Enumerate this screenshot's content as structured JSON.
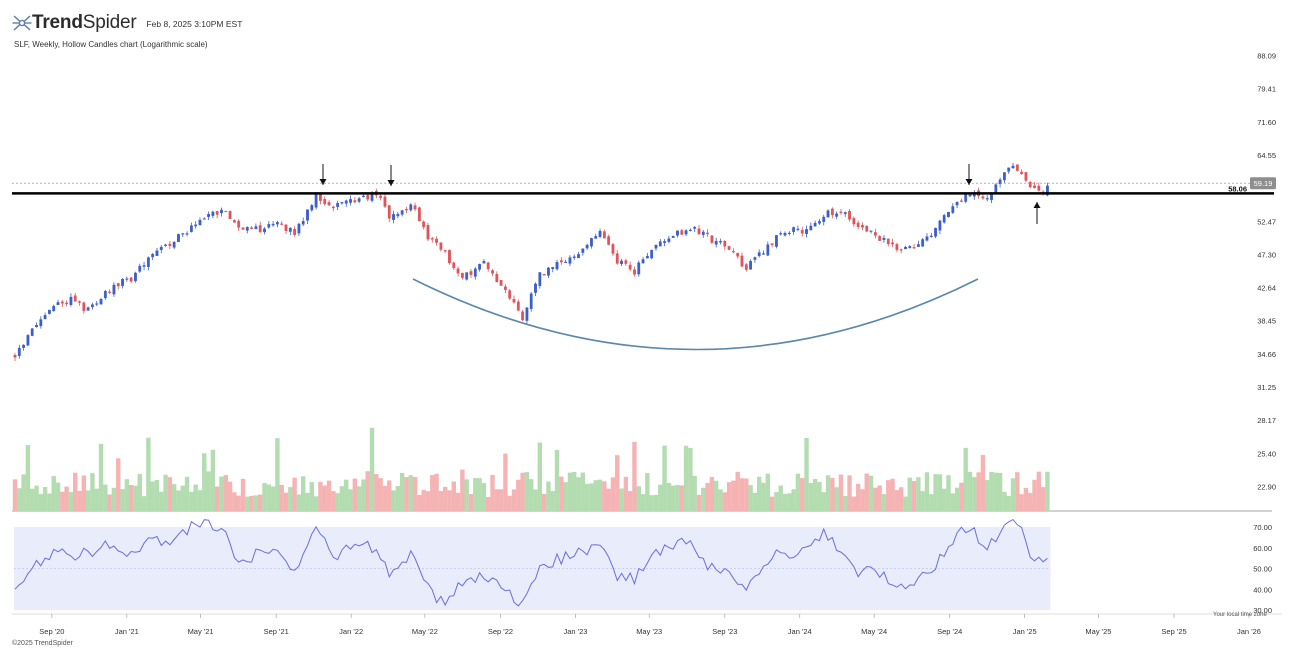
{
  "header": {
    "brand": "TrendSpider",
    "timestamp": "Feb 8, 2025 3:10PM EST"
  },
  "subtitle": "SLF, Weekly, Hollow Candles chart (Logarithmic scale)",
  "footer": {
    "copyright": "©2025 TrendSpider",
    "timezone_note": "Your local time zone"
  },
  "colors": {
    "up": "#3b5fc9",
    "down": "#e0535a",
    "vol_up": "#b3dcb0",
    "vol_down": "#f5b3b3",
    "rsi_band": "#e8ecfb",
    "rsi_line": "#6b6de0",
    "arc": "#5b87ad",
    "level": "#000000",
    "last_price_bg": "#8e8e8e"
  },
  "chart_data": {
    "type": "candlestick",
    "symbol": "SLF",
    "interval": "Weekly",
    "scale": "log",
    "price_axis_ticks": [
      "88.09",
      "79.41",
      "71.60",
      "64.55",
      "58.06",
      "52.47",
      "47.30",
      "42.64",
      "38.45",
      "34.66",
      "31.25",
      "28.17",
      "25.40",
      "22.90"
    ],
    "time_axis_ticks": [
      "Sep '20",
      "Jan '21",
      "May '21",
      "Sep '21",
      "Jan '22",
      "May '22",
      "Sep '22",
      "Jan '23",
      "May '23",
      "Sep '23",
      "Jan '24",
      "May '24",
      "Sep '24",
      "Jan '25",
      "May '25",
      "Sep '25",
      "Jan '26"
    ],
    "rsi_axis_ticks": [
      "70.00",
      "60.00",
      "50.00",
      "40.00",
      "30.00"
    ],
    "resistance_level": {
      "label": "58.06",
      "value": 58.06
    },
    "last_price": {
      "label": "59.19",
      "value": 59.19
    },
    "annotations": [
      "down-arrow Oct '21",
      "down-arrow Feb '22",
      "down-arrow Oct '24",
      "up-arrow Feb '25",
      "rounded-bottom arc"
    ],
    "price_path": [
      [
        "2020-07-03",
        34.5
      ],
      [
        "2020-08-07",
        38.0
      ],
      [
        "2020-09-04",
        40.5
      ],
      [
        "2020-10-02",
        41.2
      ],
      [
        "2020-10-30",
        39.8
      ],
      [
        "2020-12-04",
        42.5
      ],
      [
        "2021-01-08",
        44.0
      ],
      [
        "2021-02-05",
        46.5
      ],
      [
        "2021-03-05",
        48.5
      ],
      [
        "2021-04-02",
        50.5
      ],
      [
        "2021-05-07",
        53.0
      ],
      [
        "2021-06-04",
        54.5
      ],
      [
        "2021-07-02",
        52.0
      ],
      [
        "2021-08-06",
        51.0
      ],
      [
        "2021-09-03",
        52.5
      ],
      [
        "2021-10-01",
        50.5
      ],
      [
        "2021-11-05",
        57.0
      ],
      [
        "2021-12-03",
        55.0
      ],
      [
        "2022-01-07",
        56.0
      ],
      [
        "2022-02-11",
        57.5
      ],
      [
        "2022-03-04",
        53.0
      ],
      [
        "2022-04-08",
        55.5
      ],
      [
        "2022-05-06",
        50.0
      ],
      [
        "2022-06-03",
        47.5
      ],
      [
        "2022-07-01",
        44.0
      ],
      [
        "2022-08-05",
        46.0
      ],
      [
        "2022-09-09",
        42.5
      ],
      [
        "2022-10-07",
        39.0
      ],
      [
        "2022-11-04",
        44.5
      ],
      [
        "2023-01-06",
        47.5
      ],
      [
        "2023-02-10",
        50.5
      ],
      [
        "2023-03-10",
        46.5
      ],
      [
        "2023-04-07",
        45.0
      ],
      [
        "2023-05-05",
        48.0
      ],
      [
        "2023-06-02",
        50.0
      ],
      [
        "2023-07-07",
        51.5
      ],
      [
        "2023-08-04",
        50.0
      ],
      [
        "2023-09-01",
        48.5
      ],
      [
        "2023-10-06",
        45.5
      ],
      [
        "2023-11-03",
        48.0
      ],
      [
        "2023-12-08",
        51.0
      ],
      [
        "2024-01-05",
        51.0
      ],
      [
        "2024-02-09",
        53.5
      ],
      [
        "2024-03-08",
        54.5
      ],
      [
        "2024-04-05",
        51.5
      ],
      [
        "2024-05-03",
        50.5
      ],
      [
        "2024-06-07",
        48.0
      ],
      [
        "2024-07-05",
        48.5
      ],
      [
        "2024-08-09",
        51.0
      ],
      [
        "2024-09-06",
        55.5
      ],
      [
        "2024-10-04",
        57.5
      ],
      [
        "2024-11-01",
        56.5
      ],
      [
        "2024-11-29",
        61.5
      ],
      [
        "2024-12-20",
        62.0
      ],
      [
        "2025-01-10",
        58.5
      ],
      [
        "2025-01-31",
        57.5
      ],
      [
        "2025-02-07",
        59.19
      ]
    ],
    "rsi_path": [
      [
        "2020-07-03",
        42
      ],
      [
        "2020-08-07",
        52
      ],
      [
        "2020-09-04",
        59
      ],
      [
        "2020-10-02",
        55
      ],
      [
        "2020-11-06",
        58
      ],
      [
        "2020-12-04",
        62
      ],
      [
        "2021-01-08",
        57
      ],
      [
        "2021-02-05",
        65
      ],
      [
        "2021-03-05",
        62
      ],
      [
        "2021-04-02",
        68
      ],
      [
        "2021-05-07",
        73
      ],
      [
        "2021-06-04",
        70
      ],
      [
        "2021-07-02",
        52
      ],
      [
        "2021-08-06",
        58
      ],
      [
        "2021-09-03",
        56
      ],
      [
        "2021-10-01",
        48
      ],
      [
        "2021-11-05",
        71
      ],
      [
        "2021-12-03",
        55
      ],
      [
        "2022-01-07",
        63
      ],
      [
        "2022-02-11",
        60
      ],
      [
        "2022-03-04",
        46
      ],
      [
        "2022-04-08",
        56
      ],
      [
        "2022-05-06",
        40
      ],
      [
        "2022-06-03",
        33
      ],
      [
        "2022-07-01",
        43
      ],
      [
        "2022-08-05",
        48
      ],
      [
        "2022-09-09",
        39
      ],
      [
        "2022-10-07",
        32
      ],
      [
        "2022-11-04",
        52
      ],
      [
        "2023-01-06",
        57
      ],
      [
        "2023-02-10",
        63
      ],
      [
        "2023-03-10",
        46
      ],
      [
        "2023-04-07",
        45
      ],
      [
        "2023-05-05",
        56
      ],
      [
        "2023-06-02",
        60
      ],
      [
        "2023-07-07",
        63
      ],
      [
        "2023-08-04",
        52
      ],
      [
        "2023-09-01",
        50
      ],
      [
        "2023-10-06",
        38
      ],
      [
        "2023-11-03",
        54
      ],
      [
        "2023-12-08",
        58
      ],
      [
        "2024-01-05",
        57
      ],
      [
        "2024-02-09",
        68
      ],
      [
        "2024-03-08",
        58
      ],
      [
        "2024-04-05",
        47
      ],
      [
        "2024-05-03",
        49
      ],
      [
        "2024-06-07",
        40
      ],
      [
        "2024-07-05",
        43
      ],
      [
        "2024-08-09",
        52
      ],
      [
        "2024-09-06",
        64
      ],
      [
        "2024-10-04",
        71
      ],
      [
        "2024-11-01",
        58
      ],
      [
        "2024-11-29",
        73
      ],
      [
        "2024-12-20",
        74
      ],
      [
        "2025-01-10",
        54
      ],
      [
        "2025-01-31",
        52
      ],
      [
        "2025-02-07",
        57
      ]
    ]
  }
}
